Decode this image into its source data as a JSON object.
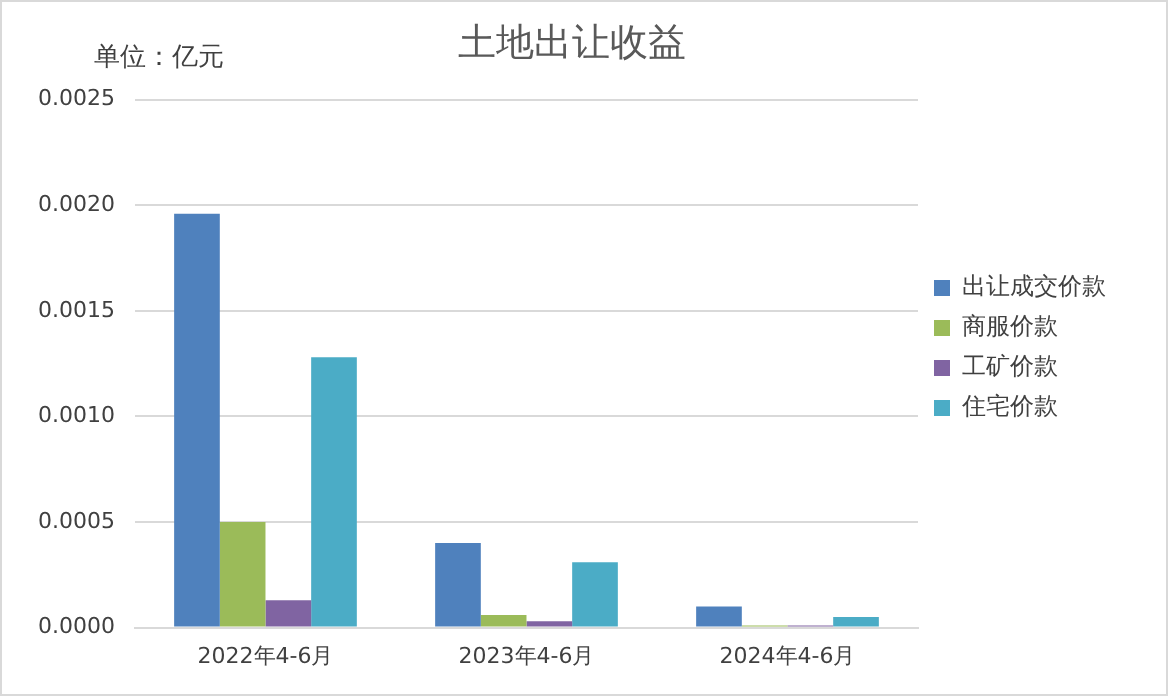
{
  "chart_data": {
    "type": "bar",
    "title": "土地出让收益",
    "annotations": [
      "单位：亿元"
    ],
    "categories": [
      "2022年4-6月",
      "2023年4-6月",
      "2024年4-6月"
    ],
    "series": [
      {
        "name": "出让成交价款",
        "color": "#4f81bd",
        "values": [
          0.00196,
          0.0004,
          0.0001
        ]
      },
      {
        "name": "商服价款",
        "color": "#9bbb59",
        "values": [
          0.0005,
          6e-05,
          1e-05
        ]
      },
      {
        "name": "工矿价款",
        "color": "#8064a2",
        "values": [
          0.00013,
          3e-05,
          1e-05
        ]
      },
      {
        "name": "住宅价款",
        "color": "#4bacc6",
        "values": [
          0.00128,
          0.00031,
          5e-05
        ]
      }
    ],
    "ylim": [
      0,
      0.0025
    ],
    "yticks": [
      {
        "value": 0,
        "label": "0.0000"
      },
      {
        "value": 0.0005,
        "label": "0.0005"
      },
      {
        "value": 0.001,
        "label": "0.0010"
      },
      {
        "value": 0.0015,
        "label": "0.0015"
      },
      {
        "value": 0.002,
        "label": "0.0020"
      },
      {
        "value": 0.0025,
        "label": "0.0025"
      }
    ],
    "grid": "y",
    "legend": "right"
  }
}
